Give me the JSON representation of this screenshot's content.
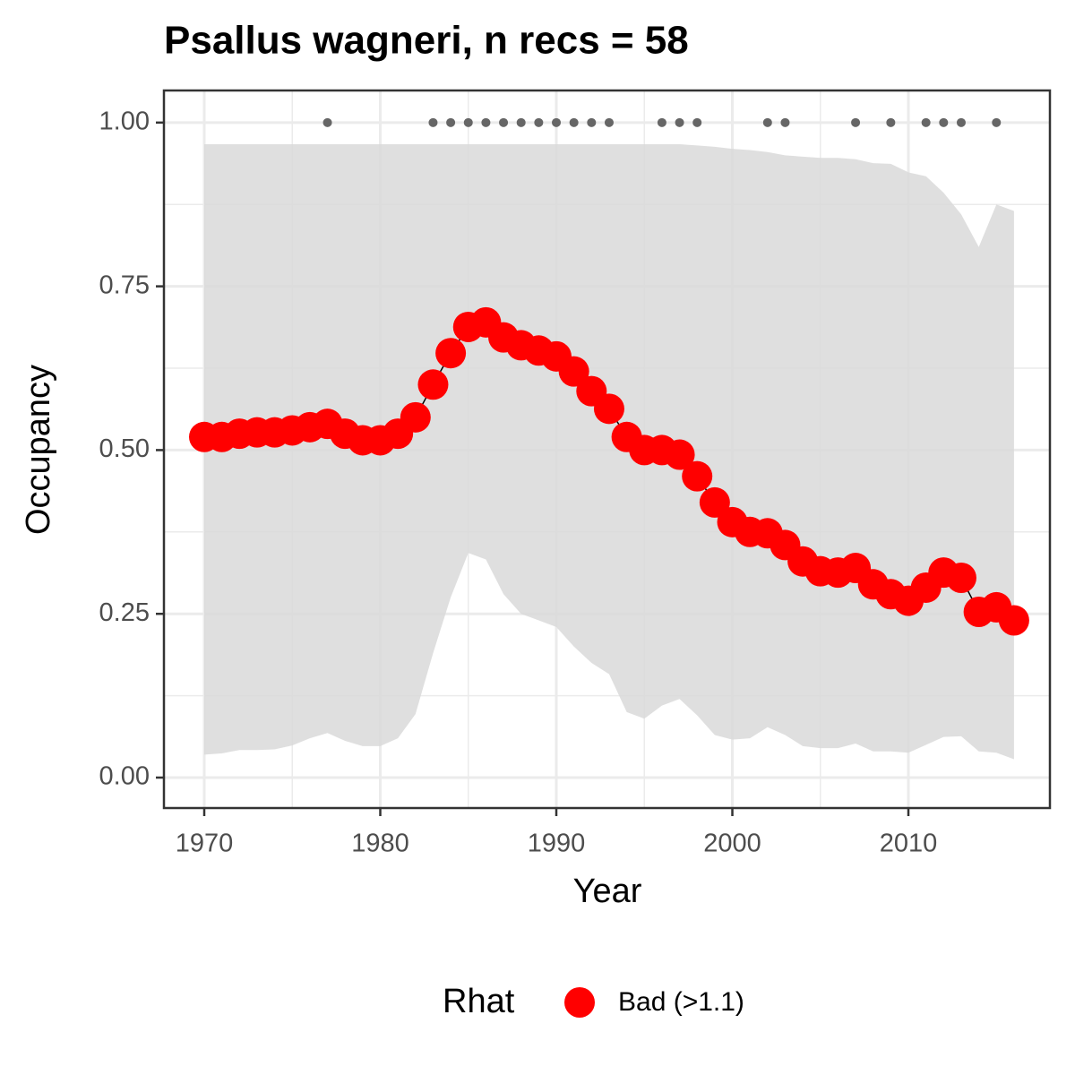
{
  "chart_data": {
    "type": "line",
    "title": "Psallus wagneri, n recs = 58",
    "x_label": "Year",
    "y_label": "Occupancy",
    "x": [
      1970,
      1971,
      1972,
      1973,
      1974,
      1975,
      1976,
      1977,
      1978,
      1979,
      1980,
      1981,
      1982,
      1983,
      1984,
      1985,
      1986,
      1987,
      1988,
      1989,
      1990,
      1991,
      1992,
      1993,
      1994,
      1995,
      1996,
      1997,
      1998,
      1999,
      2000,
      2001,
      2002,
      2003,
      2004,
      2005,
      2006,
      2007,
      2008,
      2009,
      2010,
      2011,
      2012,
      2013,
      2014,
      2015,
      2016
    ],
    "series": [
      {
        "name": "Bad (>1.1)",
        "color": "#ff0000",
        "values": [
          0.52,
          0.52,
          0.525,
          0.527,
          0.527,
          0.53,
          0.535,
          0.54,
          0.525,
          0.515,
          0.515,
          0.525,
          0.55,
          0.6,
          0.648,
          0.688,
          0.695,
          0.672,
          0.66,
          0.652,
          0.643,
          0.62,
          0.59,
          0.563,
          0.52,
          0.5,
          0.5,
          0.493,
          0.46,
          0.42,
          0.39,
          0.375,
          0.373,
          0.355,
          0.33,
          0.315,
          0.313,
          0.32,
          0.295,
          0.28,
          0.27,
          0.29,
          0.313,
          0.305,
          0.253,
          0.26,
          0.24
        ]
      }
    ],
    "band": {
      "color": "#d9d9d9",
      "lower": [
        0.035,
        0.037,
        0.042,
        0.042,
        0.043,
        0.049,
        0.06,
        0.068,
        0.056,
        0.048,
        0.048,
        0.06,
        0.097,
        0.19,
        0.275,
        0.343,
        0.333,
        0.28,
        0.25,
        0.24,
        0.23,
        0.2,
        0.175,
        0.158,
        0.1,
        0.09,
        0.11,
        0.12,
        0.095,
        0.065,
        0.058,
        0.06,
        0.077,
        0.065,
        0.048,
        0.045,
        0.045,
        0.052,
        0.04,
        0.04,
        0.038,
        0.05,
        0.062,
        0.063,
        0.04,
        0.038,
        0.028
      ],
      "upper": [
        0.967,
        0.967,
        0.967,
        0.967,
        0.967,
        0.967,
        0.967,
        0.967,
        0.967,
        0.967,
        0.967,
        0.967,
        0.967,
        0.967,
        0.967,
        0.967,
        0.967,
        0.967,
        0.967,
        0.967,
        0.967,
        0.967,
        0.967,
        0.967,
        0.967,
        0.967,
        0.967,
        0.967,
        0.965,
        0.963,
        0.96,
        0.958,
        0.955,
        0.95,
        0.948,
        0.946,
        0.946,
        0.944,
        0.938,
        0.937,
        0.924,
        0.918,
        0.893,
        0.86,
        0.81,
        0.875,
        0.865
      ]
    },
    "records": {
      "color": "#666666",
      "x": [
        1977,
        1983,
        1984,
        1985,
        1986,
        1987,
        1988,
        1989,
        1990,
        1991,
        1992,
        1993,
        1996,
        1997,
        1998,
        2002,
        2003,
        2007,
        2009,
        2011,
        2012,
        2013,
        2015
      ],
      "y": [
        1,
        1,
        1,
        1,
        1,
        1,
        1,
        1,
        1,
        1,
        1,
        1,
        1,
        1,
        1,
        1,
        1,
        1,
        1,
        1,
        1,
        1,
        1
      ]
    },
    "xlim": [
      1967.71,
      2018.04
    ],
    "ylim": [
      -0.0465,
      1.049
    ],
    "xticks": [
      1970,
      1980,
      1990,
      2000,
      2010
    ],
    "yticks": [
      {
        "value": 0,
        "label": "0.00"
      },
      {
        "value": 0.25,
        "label": "0.25"
      },
      {
        "value": 0.5,
        "label": "0.50"
      },
      {
        "value": 0.75,
        "label": "0.75"
      },
      {
        "value": 1,
        "label": "1.00"
      }
    ],
    "grid": true,
    "legend": {
      "title": "Rhat",
      "position": "bottom"
    }
  }
}
